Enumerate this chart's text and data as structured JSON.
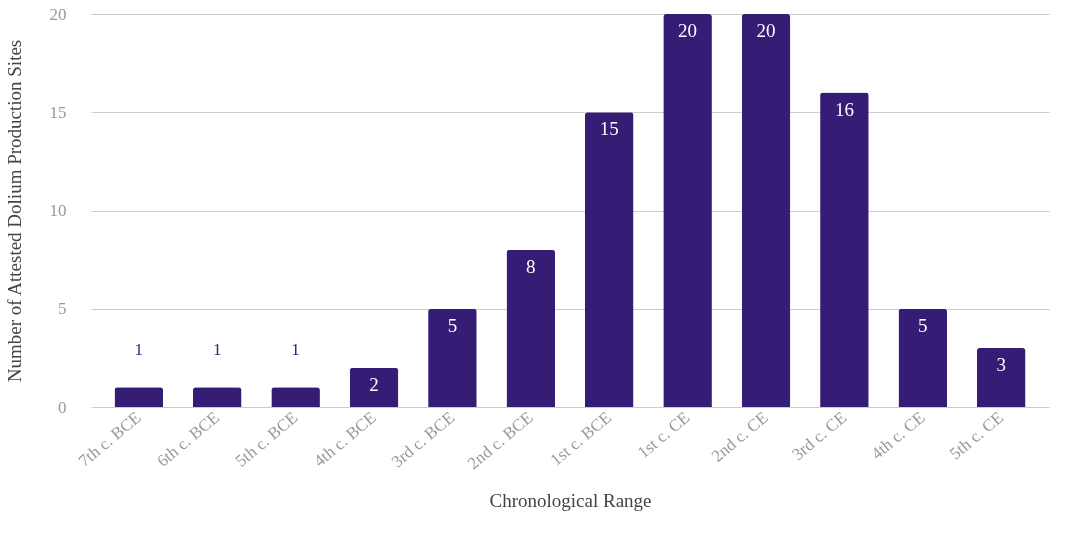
{
  "chart_data": {
    "type": "bar",
    "xlabel": "Chronological Range",
    "ylabel": "Number of Attested Dolium Production Sites",
    "categories": [
      "7th c. BCE",
      "6th c. BCE",
      "5th c. BCE",
      "4th c. BCE",
      "3rd c. BCE",
      "2nd c. BCE",
      "1st c. BCE",
      "1st c. CE",
      "2nd c. CE",
      "3rd c. CE",
      "4th c. CE",
      "5th c. CE"
    ],
    "values": [
      1,
      1,
      1,
      2,
      5,
      8,
      15,
      20,
      20,
      16,
      5,
      3
    ],
    "color": "#351c75",
    "ylim": [
      0,
      20
    ],
    "yticks": [
      0,
      5,
      10,
      15,
      20
    ],
    "grid": "y",
    "data_labels": true
  }
}
